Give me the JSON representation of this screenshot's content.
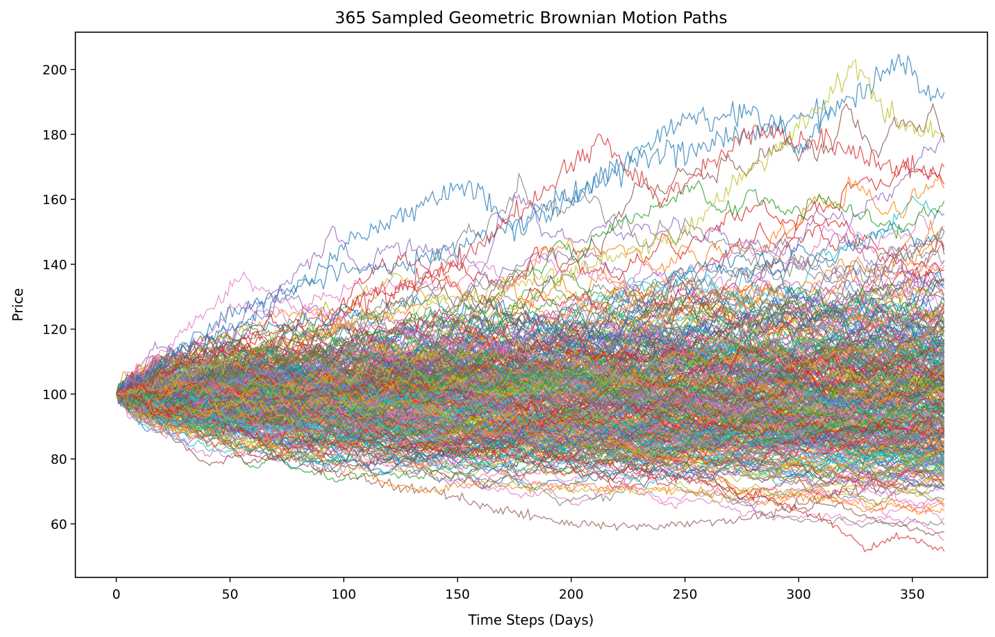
{
  "chart_data": {
    "type": "line",
    "title": "365 Sampled Geometric Brownian Motion Paths",
    "xlabel": "Time Steps (Days)",
    "ylabel": "Price",
    "xlim": [
      -18,
      383
    ],
    "ylim": [
      43.5,
      211.5
    ],
    "xticks": [
      0,
      50,
      100,
      150,
      200,
      250,
      300,
      350
    ],
    "yticks": [
      60,
      80,
      100,
      120,
      140,
      160,
      180,
      200
    ],
    "grid": false,
    "legend": "none",
    "num_paths": 365,
    "num_steps": 365,
    "start_price": 100,
    "colors": [
      "#1f77b4",
      "#ff7f0e",
      "#2ca02c",
      "#d62728",
      "#9467bd",
      "#8c564b",
      "#e377c2",
      "#7f7f7f",
      "#bcbd22",
      "#17becf"
    ],
    "highlighted_paths": [
      {
        "color": "#1f77b4",
        "points": [
          [
            0,
            100
          ],
          [
            25,
            113
          ],
          [
            50,
            124
          ],
          [
            75,
            132
          ],
          [
            100,
            138
          ],
          [
            125,
            140
          ],
          [
            150,
            145
          ],
          [
            175,
            152
          ],
          [
            200,
            162
          ],
          [
            225,
            170
          ],
          [
            250,
            176
          ],
          [
            275,
            180
          ],
          [
            300,
            184
          ],
          [
            318,
            189
          ],
          [
            330,
            195
          ],
          [
            346,
            204
          ],
          [
            358,
            191
          ],
          [
            364,
            193
          ]
        ]
      },
      {
        "color": "#bcbd22",
        "points": [
          [
            0,
            100
          ],
          [
            50,
            110
          ],
          [
            100,
            122
          ],
          [
            150,
            130
          ],
          [
            200,
            138
          ],
          [
            250,
            150
          ],
          [
            280,
            170
          ],
          [
            300,
            182
          ],
          [
            310,
            188
          ],
          [
            318,
            196
          ],
          [
            325,
            202
          ],
          [
            335,
            190
          ],
          [
            350,
            182
          ],
          [
            364,
            179
          ]
        ]
      },
      {
        "color": "#1f77b4",
        "points": [
          [
            0,
            100
          ],
          [
            20,
            110
          ],
          [
            50,
            120
          ],
          [
            80,
            133
          ],
          [
            100,
            145
          ],
          [
            125,
            155
          ],
          [
            150,
            164
          ],
          [
            160,
            162
          ],
          [
            175,
            150
          ],
          [
            200,
            160
          ],
          [
            225,
            172
          ],
          [
            250,
            186
          ],
          [
            265,
            184
          ],
          [
            280,
            188
          ],
          [
            290,
            182
          ],
          [
            300,
            175
          ],
          [
            315,
            188
          ]
        ]
      },
      {
        "color": "#d62728",
        "points": [
          [
            0,
            100
          ],
          [
            50,
            115
          ],
          [
            100,
            126
          ],
          [
            150,
            140
          ],
          [
            175,
            155
          ],
          [
            200,
            170
          ],
          [
            212,
            182
          ],
          [
            220,
            172
          ],
          [
            240,
            160
          ],
          [
            260,
            170
          ],
          [
            280,
            182
          ],
          [
            300,
            178
          ],
          [
            320,
            176
          ],
          [
            345,
            168
          ],
          [
            364,
            170
          ]
        ]
      },
      {
        "color": "#8c564b",
        "points": [
          [
            0,
            100
          ],
          [
            20,
            92
          ],
          [
            50,
            85
          ],
          [
            75,
            80
          ],
          [
            100,
            75
          ],
          [
            120,
            72
          ],
          [
            140,
            70
          ],
          [
            160,
            66
          ],
          [
            180,
            63
          ],
          [
            200,
            60
          ],
          [
            225,
            59
          ],
          [
            250,
            60
          ],
          [
            275,
            61
          ],
          [
            300,
            66
          ],
          [
            320,
            70
          ],
          [
            345,
            72
          ],
          [
            364,
            72
          ]
        ]
      },
      {
        "color": "#d62728",
        "points": [
          [
            0,
            100
          ],
          [
            30,
            93
          ],
          [
            60,
            88
          ],
          [
            100,
            84
          ],
          [
            150,
            82
          ],
          [
            200,
            80
          ],
          [
            250,
            74
          ],
          [
            280,
            69
          ],
          [
            300,
            64
          ],
          [
            315,
            60
          ],
          [
            330,
            52
          ],
          [
            345,
            57
          ],
          [
            364,
            51.5
          ]
        ]
      },
      {
        "color": "#e377c2",
        "points": [
          [
            0,
            100
          ],
          [
            20,
            112
          ],
          [
            40,
            126
          ],
          [
            55,
            136
          ],
          [
            75,
            128
          ],
          [
            100,
            122
          ],
          [
            150,
            116
          ],
          [
            200,
            110
          ],
          [
            250,
            100
          ],
          [
            300,
            88
          ],
          [
            330,
            74
          ],
          [
            350,
            66
          ],
          [
            364,
            62
          ]
        ]
      },
      {
        "color": "#ff7f0e",
        "points": [
          [
            0,
            100
          ],
          [
            20,
            90
          ],
          [
            50,
            86
          ],
          [
            80,
            82
          ],
          [
            110,
            76
          ],
          [
            120,
            72
          ],
          [
            135,
            70
          ],
          [
            150,
            72
          ],
          [
            200,
            72
          ],
          [
            250,
            70
          ],
          [
            300,
            68
          ],
          [
            340,
            66
          ],
          [
            364,
            64
          ]
        ]
      }
    ]
  }
}
